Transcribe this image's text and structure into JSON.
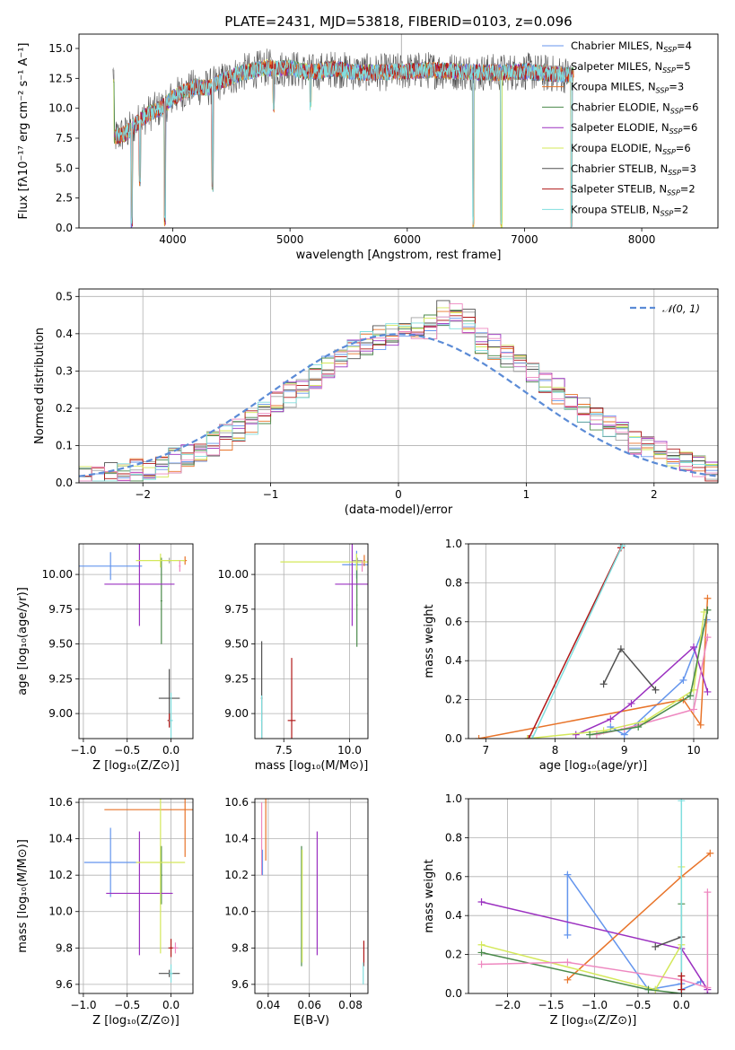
{
  "colors": {
    "chabrier_miles": "#6495ed",
    "salpeter_miles": "#a0a0a0",
    "kroupa_miles": "#e8742a",
    "chabrier_elodie": "#4a8a4a",
    "salpeter_elodie": "#9b30c0",
    "kroupa_elodie": "#d4e85a",
    "chabrier_stelib": "#505050",
    "salpeter_stelib": "#b01818",
    "kroupa_stelib": "#80dede",
    "pink": "#ee88c0",
    "normal": "#5b8bd6"
  },
  "chart_data": [
    {
      "id": "spectrum",
      "type": "line",
      "title": "PLATE=2431, MJD=53818, FIBERID=0103, z=0.096",
      "xlabel": "wavelength [Angstrom, rest frame]",
      "ylabel": "Flux [fλ10⁻¹⁷ erg cm⁻² s⁻¹ A⁻¹]",
      "xlim": [
        3200,
        8650
      ],
      "ylim": [
        0,
        16.2
      ],
      "xticks": [
        "4000",
        "5000",
        "6000",
        "7000",
        "8000"
      ],
      "xtick_values": [
        4000,
        5000,
        6000,
        7000,
        8000
      ],
      "yticks": [
        "0.0",
        "2.5",
        "5.0",
        "7.5",
        "10.0",
        "12.5",
        "15.0"
      ],
      "ytick_values": [
        0,
        2.5,
        5,
        7.5,
        10,
        12.5,
        15
      ],
      "legend_position": "top-right",
      "legend": [
        {
          "label": "Chabrier MILES, N",
          "sub": "SSP",
          "suffix": "=4",
          "color": "chabrier_miles"
        },
        {
          "label": "Salpeter MILES, N",
          "sub": "SSP",
          "suffix": "=5",
          "color": "salpeter_miles"
        },
        {
          "label": "Kroupa MILES, N",
          "sub": "SSP",
          "suffix": "=3",
          "color": "kroupa_miles"
        },
        {
          "label": "Chabrier ELODIE, N",
          "sub": "SSP",
          "suffix": "=6",
          "color": "chabrier_elodie"
        },
        {
          "label": "Salpeter ELODIE, N",
          "sub": "SSP",
          "suffix": "=6",
          "color": "salpeter_elodie"
        },
        {
          "label": "Kroupa ELODIE, N",
          "sub": "SSP",
          "suffix": "=6",
          "color": "kroupa_elodie"
        },
        {
          "label": "Chabrier STELIB, N",
          "sub": "SSP",
          "suffix": "=3",
          "color": "chabrier_stelib"
        },
        {
          "label": "Salpeter STELIB, N",
          "sub": "SSP",
          "suffix": "=2",
          "color": "salpeter_stelib"
        },
        {
          "label": "Kroupa STELIB, N",
          "sub": "SSP",
          "suffix": "=2",
          "color": "kroupa_stelib"
        }
      ],
      "continuum": [
        [
          3500,
          7.6
        ],
        [
          3600,
          7.9
        ],
        [
          3700,
          8.8
        ],
        [
          3800,
          9.6
        ],
        [
          3900,
          10.0
        ],
        [
          4000,
          10.9
        ],
        [
          4100,
          11.4
        ],
        [
          4200,
          11.8
        ],
        [
          4300,
          11.7
        ],
        [
          4400,
          12.2
        ],
        [
          4500,
          12.6
        ],
        [
          4600,
          13.0
        ],
        [
          4700,
          13.2
        ],
        [
          4800,
          13.4
        ],
        [
          4900,
          13.3
        ],
        [
          5000,
          13.4
        ],
        [
          5100,
          13.1
        ],
        [
          5200,
          13.0
        ],
        [
          5300,
          13.2
        ],
        [
          5400,
          13.3
        ],
        [
          5500,
          13.1
        ],
        [
          5600,
          13.0
        ],
        [
          5800,
          13.0
        ],
        [
          6000,
          13.1
        ],
        [
          6200,
          13.2
        ],
        [
          6400,
          13.1
        ],
        [
          6600,
          13.0
        ],
        [
          6800,
          13.0
        ],
        [
          7000,
          13.1
        ],
        [
          7200,
          12.9
        ],
        [
          7400,
          12.8
        ]
      ],
      "dips": [
        [
          3650,
          0
        ],
        [
          3720,
          3.5
        ],
        [
          3933,
          0
        ],
        [
          4340,
          3.0
        ],
        [
          4861,
          9.6
        ],
        [
          5175,
          9.8
        ],
        [
          6563,
          0
        ],
        [
          6800,
          0
        ],
        [
          7400,
          0
        ]
      ]
    },
    {
      "id": "residuals",
      "type": "line",
      "xlabel": "(data-model)/error",
      "ylabel": "Normed distribution",
      "xlim": [
        -2.5,
        2.5
      ],
      "ylim": [
        0,
        0.52
      ],
      "xticks": [
        "−2",
        "−1",
        "0",
        "1",
        "2"
      ],
      "xtick_values": [
        -2,
        -1,
        0,
        1,
        2
      ],
      "yticks": [
        "0.0",
        "0.1",
        "0.2",
        "0.3",
        "0.4",
        "0.5"
      ],
      "ytick_values": [
        0,
        0.1,
        0.2,
        0.3,
        0.4,
        0.5
      ],
      "legend_position": "top-right",
      "legend": [
        {
          "label": "𝒩(0, 1)",
          "color": "normal",
          "style": "dashed"
        }
      ],
      "bin_width": 0.1
    },
    {
      "id": "age-vs-Z",
      "type": "errorbar",
      "xlabel": "Z [log₁₀(Z/Z⊙)]",
      "ylabel": "age  [log₁₀(age/yr)]",
      "xlim": [
        -1.05,
        0.25
      ],
      "ylim": [
        8.82,
        10.22
      ],
      "xticks": [
        "−1.0",
        "−0.5",
        "0.0"
      ],
      "xtick_values": [
        -1.0,
        -0.5,
        0.0
      ],
      "yticks": [
        "9.00",
        "9.25",
        "9.50",
        "9.75",
        "10.00"
      ],
      "ytick_values": [
        9.0,
        9.25,
        9.5,
        9.75,
        10.0
      ],
      "points": [
        {
          "x": -0.69,
          "y": 10.06,
          "xerr": 0.36,
          "yerr": 0.1,
          "color": "chabrier_miles"
        },
        {
          "x": -0.02,
          "y": 10.1,
          "xerr": 0.02,
          "yerr": 0.02,
          "color": "salpeter_miles"
        },
        {
          "x": 0.16,
          "y": 10.1,
          "xerr": 0.02,
          "yerr": 0.03,
          "color": "kroupa_miles"
        },
        {
          "x": -0.11,
          "y": 9.81,
          "xerr": 0.01,
          "yerr": 0.31,
          "color": "chabrier_elodie"
        },
        {
          "x": -0.36,
          "y": 9.93,
          "xerr": 0.4,
          "yerr": 0.3,
          "color": "salpeter_elodie"
        },
        {
          "x": -0.12,
          "y": 10.1,
          "xerr": 0.28,
          "yerr": 0.05,
          "color": "kroupa_elodie"
        },
        {
          "x": -0.02,
          "y": 9.11,
          "xerr": 0.12,
          "yerr": 0.21,
          "color": "chabrier_stelib"
        },
        {
          "x": -0.02,
          "y": 8.95,
          "xerr": 0.02,
          "yerr": 0.05,
          "color": "salpeter_stelib"
        },
        {
          "x": 0.0,
          "y": 8.95,
          "xerr": 0.02,
          "yerr": 0.2,
          "color": "kroupa_stelib"
        },
        {
          "x": 0.1,
          "y": 10.06,
          "xerr": 0.01,
          "yerr": 0.04,
          "color": "pink"
        }
      ]
    },
    {
      "id": "age-vs-mass",
      "type": "errorbar",
      "xlabel": "mass [log₁₀(M/M⊙)]",
      "ylabel": "",
      "xlim": [
        6.4,
        10.7
      ],
      "ylim": [
        8.82,
        10.22
      ],
      "xticks": [
        "7.5",
        "10.0"
      ],
      "xtick_values": [
        7.5,
        10.0
      ],
      "yticks": [
        "9.00",
        "9.25",
        "9.50",
        "9.75",
        "10.00"
      ],
      "ytick_values": [
        9.0,
        9.25,
        9.5,
        9.75,
        10.0
      ],
      "points": [
        {
          "x": 10.27,
          "y": 10.07,
          "xerr": 0.55,
          "yerr": 0.1,
          "color": "chabrier_miles"
        },
        {
          "x": 10.3,
          "y": 10.1,
          "xerr": 0.2,
          "yerr": 0.02,
          "color": "salpeter_miles"
        },
        {
          "x": 10.56,
          "y": 10.1,
          "xerr": 0.03,
          "yerr": 0.04,
          "color": "kroupa_miles"
        },
        {
          "x": 10.28,
          "y": 9.78,
          "xerr": 0.02,
          "yerr": 0.3,
          "color": "chabrier_elodie"
        },
        {
          "x": 10.1,
          "y": 9.93,
          "xerr": 0.65,
          "yerr": 0.3,
          "color": "salpeter_elodie"
        },
        {
          "x": 10.27,
          "y": 10.09,
          "xerr": 2.9,
          "yerr": 0.06,
          "color": "kroupa_elodie"
        },
        {
          "x": 6.66,
          "y": 9.11,
          "xerr": 0.03,
          "yerr": 0.41,
          "color": "chabrier_stelib"
        },
        {
          "x": 7.8,
          "y": 8.95,
          "xerr": 0.15,
          "yerr": 0.45,
          "color": "salpeter_stelib"
        },
        {
          "x": 6.66,
          "y": 8.95,
          "xerr": 0.03,
          "yerr": 0.18,
          "color": "kroupa_stelib"
        },
        {
          "x": 10.48,
          "y": 10.06,
          "xerr": 0.02,
          "yerr": 0.04,
          "color": "pink"
        }
      ]
    },
    {
      "id": "weight-vs-age",
      "type": "line",
      "xlabel": "age  [log₁₀(age/yr)]",
      "ylabel": "mass weight",
      "xlim": [
        6.75,
        10.35
      ],
      "ylim": [
        0,
        1.0
      ],
      "xticks": [
        "7",
        "8",
        "9",
        "10"
      ],
      "xtick_values": [
        7,
        8,
        9,
        10
      ],
      "yticks": [
        "0.0",
        "0.2",
        "0.4",
        "0.6",
        "0.8",
        "1.0"
      ],
      "ytick_values": [
        0,
        0.2,
        0.4,
        0.6,
        0.8,
        1.0
      ],
      "series": [
        {
          "color": "chabrier_miles",
          "x": [
            8.8,
            9.0,
            9.85,
            10.19
          ],
          "y": [
            0.06,
            0.02,
            0.3,
            0.61
          ]
        },
        {
          "color": "kroupa_miles",
          "x": [
            6.9,
            9.85,
            10.1,
            10.2
          ],
          "y": [
            0.0,
            0.2,
            0.07,
            0.72
          ]
        },
        {
          "color": "salpeter_elodie",
          "x": [
            8.3,
            8.8,
            9.1,
            10.0,
            10.2
          ],
          "y": [
            0.02,
            0.1,
            0.18,
            0.47,
            0.24
          ]
        },
        {
          "color": "kroupa_elodie",
          "x": [
            7.6,
            8.7,
            9.3,
            10.0,
            10.15
          ],
          "y": [
            0.0,
            0.04,
            0.09,
            0.25,
            0.65
          ]
        },
        {
          "color": "chabrier_stelib",
          "x": [
            8.7,
            8.95,
            9.45
          ],
          "y": [
            0.28,
            0.46,
            0.25
          ]
        },
        {
          "color": "salpeter_stelib",
          "x": [
            7.62,
            8.95
          ],
          "y": [
            0.0,
            0.98
          ]
        },
        {
          "color": "kroupa_stelib",
          "x": [
            7.67,
            8.97
          ],
          "y": [
            0.0,
            0.99
          ]
        },
        {
          "color": "pink",
          "x": [
            8.6,
            9.0,
            10.0,
            10.2
          ],
          "y": [
            0.02,
            0.05,
            0.15,
            0.52
          ]
        },
        {
          "color": "chabrier_elodie",
          "x": [
            8.5,
            9.2,
            9.95,
            10.2
          ],
          "y": [
            0.02,
            0.06,
            0.22,
            0.66
          ]
        }
      ]
    },
    {
      "id": "mass-vs-Z",
      "type": "errorbar",
      "xlabel": "Z [log₁₀(Z/Z⊙)]",
      "ylabel": "mass [log₁₀(M/M⊙)]",
      "xlim": [
        -1.05,
        0.25
      ],
      "ylim": [
        9.55,
        10.62
      ],
      "xticks": [
        "−1.0",
        "−0.5",
        "0.0"
      ],
      "xtick_values": [
        -1.0,
        -0.5,
        0.0
      ],
      "yticks": [
        "9.6",
        "9.8",
        "10.0",
        "10.2",
        "10.4",
        "10.6"
      ],
      "ytick_values": [
        9.6,
        9.8,
        10.0,
        10.2,
        10.4,
        10.6
      ],
      "points": [
        {
          "x": -0.69,
          "y": 10.27,
          "xerr": 0.3,
          "yerr": 0.19,
          "color": "chabrier_miles"
        },
        {
          "x": 0.16,
          "y": 10.56,
          "xerr": 0.92,
          "yerr": 0.26,
          "color": "kroupa_miles"
        },
        {
          "x": -0.11,
          "y": 10.2,
          "xerr": 0.01,
          "yerr": 0.16,
          "color": "chabrier_elodie"
        },
        {
          "x": -0.36,
          "y": 10.1,
          "xerr": 0.38,
          "yerr": 0.34,
          "color": "salpeter_elodie"
        },
        {
          "x": -0.12,
          "y": 10.27,
          "xerr": 0.28,
          "yerr": 0.5,
          "color": "kroupa_elodie"
        },
        {
          "x": -0.02,
          "y": 9.66,
          "xerr": 0.12,
          "yerr": 0.02,
          "color": "chabrier_stelib"
        },
        {
          "x": 0.0,
          "y": 9.8,
          "xerr": 0.03,
          "yerr": 0.05,
          "color": "salpeter_stelib"
        },
        {
          "x": 0.0,
          "y": 9.66,
          "xerr": 0.02,
          "yerr": 0.05,
          "color": "kroupa_stelib"
        },
        {
          "x": 0.05,
          "y": 9.8,
          "xerr": 0.03,
          "yerr": 0.03,
          "color": "pink"
        }
      ]
    },
    {
      "id": "mass-vs-ebv",
      "type": "errorbar",
      "xlabel": "E(B-V)",
      "ylabel": "",
      "xlim": [
        0.0335,
        0.0885
      ],
      "ylim": [
        9.55,
        10.62
      ],
      "xticks": [
        "0.04",
        "0.06",
        "0.08"
      ],
      "xtick_values": [
        0.04,
        0.06,
        0.08
      ],
      "yticks": [
        "9.6",
        "9.8",
        "10.0",
        "10.2",
        "10.4",
        "10.6"
      ],
      "ytick_values": [
        9.6,
        9.8,
        10.0,
        10.2,
        10.4,
        10.6
      ],
      "points": [
        {
          "x": 0.0368,
          "y": 10.4,
          "xerr": 0.0,
          "yerr": 0.2,
          "color": "pink"
        },
        {
          "x": 0.0388,
          "y": 10.45,
          "xerr": 0.0,
          "yerr": 0.17,
          "color": "kroupa_miles"
        },
        {
          "x": 0.0372,
          "y": 10.27,
          "xerr": 0.0,
          "yerr": 0.07,
          "color": "chabrier_miles"
        },
        {
          "x": 0.0562,
          "y": 10.03,
          "xerr": 0.0,
          "yerr": 0.33,
          "color": "chabrier_elodie"
        },
        {
          "x": 0.0565,
          "y": 10.03,
          "xerr": 0.0,
          "yerr": 0.31,
          "color": "kroupa_elodie"
        },
        {
          "x": 0.0638,
          "y": 10.1,
          "xerr": 0.0,
          "yerr": 0.34,
          "color": "salpeter_elodie"
        },
        {
          "x": 0.0865,
          "y": 9.77,
          "xerr": 0.0,
          "yerr": 0.07,
          "color": "salpeter_stelib"
        },
        {
          "x": 0.0862,
          "y": 9.66,
          "xerr": 0.0,
          "yerr": 0.06,
          "color": "kroupa_stelib"
        }
      ]
    },
    {
      "id": "weight-vs-Z",
      "type": "line",
      "xlabel": "Z [log₁₀(Z/Z⊙)]",
      "ylabel": "mass weight",
      "xlim": [
        -2.45,
        0.42
      ],
      "ylim": [
        0,
        1.0
      ],
      "xticks": [
        "−2.0",
        "−1.5",
        "−1.0",
        "−0.5",
        "0.0"
      ],
      "xtick_values": [
        -2.0,
        -1.5,
        -1.0,
        -0.5,
        0.0
      ],
      "yticks": [
        "0.0",
        "0.2",
        "0.4",
        "0.6",
        "0.8",
        "1.0"
      ],
      "ytick_values": [
        0,
        0.2,
        0.4,
        0.6,
        0.8,
        1.0
      ],
      "series": [
        {
          "color": "chabrier_miles",
          "x": [
            -1.31,
            -1.31,
            -0.38,
            0.0,
            0.0,
            0.22
          ],
          "y": [
            0.3,
            0.61,
            0.02,
            0.05,
            0.02,
            0.06
          ]
        },
        {
          "color": "kroupa_miles",
          "x": [
            -1.31,
            0.0,
            0.33
          ],
          "y": [
            0.07,
            0.6,
            0.72
          ]
        },
        {
          "color": "salpeter_elodie",
          "x": [
            -2.3,
            -0.0,
            0.3,
            0.3
          ],
          "y": [
            0.47,
            0.23,
            0.02,
            0.0
          ]
        },
        {
          "color": "kroupa_elodie",
          "x": [
            -2.3,
            -0.3,
            0.0,
            0.0
          ],
          "y": [
            0.25,
            0.02,
            0.25,
            0.65
          ]
        },
        {
          "color": "chabrier_stelib",
          "x": [
            -0.3,
            0.0
          ],
          "y": [
            0.24,
            0.29
          ]
        },
        {
          "color": "chabrier_elodie",
          "x": [
            -2.3,
            -0.38,
            0.0,
            0.0
          ],
          "y": [
            0.21,
            0.02,
            0.0,
            0.46
          ]
        },
        {
          "color": "kroupa_stelib",
          "x": [
            0.0,
            0.0
          ],
          "y": [
            0.0,
            0.99
          ]
        },
        {
          "color": "pink",
          "x": [
            -2.3,
            -1.31,
            0.0,
            0.3,
            0.3
          ],
          "y": [
            0.15,
            0.16,
            0.07,
            0.03,
            0.52
          ]
        },
        {
          "color": "salpeter_stelib",
          "x": [
            0.0,
            0.0
          ],
          "y": [
            0.02,
            0.09
          ]
        }
      ]
    }
  ]
}
